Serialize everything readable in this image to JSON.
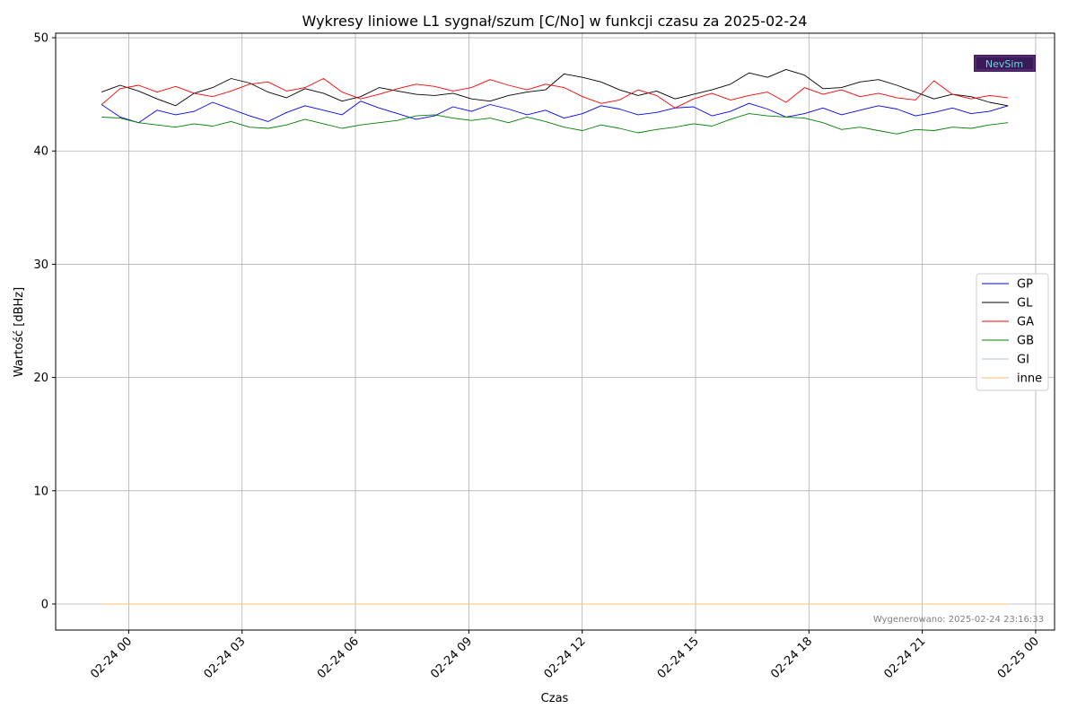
{
  "chart_data": {
    "type": "line",
    "title": "Wykresy liniowe L1 sygnał/szum [C/No] w funkcji czasu za 2025-02-24",
    "xlabel": "Czas",
    "ylabel": "Wartość [dBHz]",
    "ylim": [
      -2.3,
      50.4
    ],
    "xlim": [
      "2025-02-23 22:04",
      "2025-02-25 00:30"
    ],
    "yticks": [
      0,
      10,
      20,
      30,
      40,
      50
    ],
    "xticks": [
      {
        "at": "2025-02-24 00:00",
        "label": "02-24 00"
      },
      {
        "at": "2025-02-24 03:00",
        "label": "02-24 03"
      },
      {
        "at": "2025-02-24 06:00",
        "label": "02-24 06"
      },
      {
        "at": "2025-02-24 09:00",
        "label": "02-24 09"
      },
      {
        "at": "2025-02-24 12:00",
        "label": "02-24 12"
      },
      {
        "at": "2025-02-24 15:00",
        "label": "02-24 15"
      },
      {
        "at": "2025-02-24 18:00",
        "label": "02-24 18"
      },
      {
        "at": "2025-02-24 21:00",
        "label": "02-24 21"
      },
      {
        "at": "2025-02-25 00:00",
        "label": "02-25 00"
      }
    ],
    "grid": true,
    "legend_position": "center-right",
    "x_start": "2025-02-23 23:17",
    "x_end": "2025-02-24 23:16",
    "series": [
      {
        "name": "GP",
        "color": "#0000ff",
        "values": [
          44.1,
          43.0,
          42.5,
          43.6,
          43.2,
          43.5,
          44.3,
          43.7,
          43.1,
          42.6,
          43.4,
          44.0,
          43.6,
          43.2,
          44.4,
          43.8,
          43.3,
          42.8,
          43.1,
          43.9,
          43.5,
          44.1,
          43.7,
          43.2,
          43.6,
          42.9,
          43.3,
          44.0,
          43.7,
          43.2,
          43.4,
          43.8,
          43.9,
          43.1,
          43.5,
          44.2,
          43.7,
          43.0,
          43.3,
          43.8,
          43.2,
          43.6,
          44.0,
          43.7,
          43.1,
          43.4,
          43.8,
          43.3,
          43.5,
          44.0
        ]
      },
      {
        "name": "GL",
        "color": "#000000",
        "values": [
          45.2,
          45.8,
          45.3,
          44.6,
          44.0,
          45.1,
          45.6,
          46.4,
          46.0,
          45.2,
          44.7,
          45.5,
          45.1,
          44.4,
          44.8,
          45.6,
          45.3,
          45.0,
          44.9,
          45.1,
          44.6,
          44.4,
          44.9,
          45.2,
          45.4,
          46.8,
          46.5,
          46.1,
          45.4,
          44.9,
          45.3,
          44.6,
          45.0,
          45.4,
          45.9,
          46.9,
          46.5,
          47.2,
          46.7,
          45.5,
          45.6,
          46.1,
          46.3,
          45.8,
          45.2,
          44.6,
          45.0,
          44.8,
          44.3,
          44.0
        ]
      },
      {
        "name": "GA",
        "color": "#ff0000",
        "values": [
          44.1,
          45.5,
          45.8,
          45.2,
          45.7,
          45.1,
          44.8,
          45.3,
          45.9,
          46.1,
          45.3,
          45.6,
          46.4,
          45.2,
          44.6,
          45.0,
          45.5,
          45.9,
          45.7,
          45.3,
          45.6,
          46.3,
          45.8,
          45.4,
          45.9,
          45.6,
          44.8,
          44.2,
          44.5,
          45.4,
          44.9,
          43.8,
          44.6,
          45.1,
          44.5,
          44.9,
          45.2,
          44.3,
          45.6,
          45.0,
          45.4,
          44.8,
          45.1,
          44.7,
          44.5,
          46.2,
          45.0,
          44.6,
          44.9,
          44.7
        ]
      },
      {
        "name": "GB",
        "color": "#008000",
        "values": [
          43.0,
          42.9,
          42.5,
          42.3,
          42.1,
          42.4,
          42.2,
          42.6,
          42.1,
          42.0,
          42.3,
          42.8,
          42.4,
          42.0,
          42.3,
          42.5,
          42.7,
          43.1,
          43.2,
          42.9,
          42.7,
          42.9,
          42.5,
          43.0,
          42.6,
          42.1,
          41.8,
          42.3,
          42.0,
          41.6,
          41.9,
          42.1,
          42.4,
          42.2,
          42.8,
          43.3,
          43.1,
          43.0,
          42.9,
          42.5,
          41.9,
          42.1,
          41.8,
          41.5,
          41.9,
          41.8,
          42.1,
          42.0,
          42.3,
          42.5
        ]
      },
      {
        "name": "GI",
        "color": "#a6cee3",
        "values": [
          0,
          0
        ]
      },
      {
        "name": "inne",
        "color": "#fdbf6f",
        "values": [
          0,
          0
        ]
      }
    ]
  },
  "footer_note": "Wygenerowano: 2025-02-24 23:16:33",
  "logo_text": "NevSim"
}
